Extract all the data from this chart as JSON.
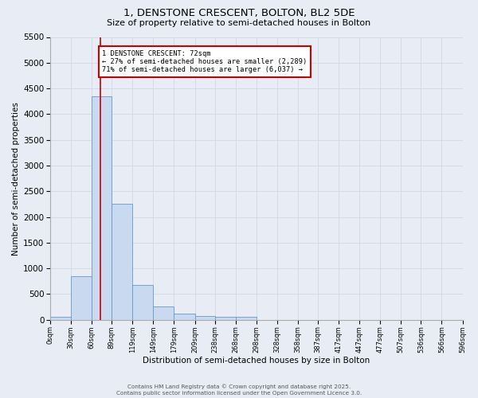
{
  "title_line1": "1, DENSTONE CRESCENT, BOLTON, BL2 5DE",
  "title_line2": "Size of property relative to semi-detached houses in Bolton",
  "xlabel": "Distribution of semi-detached houses by size in Bolton",
  "ylabel": "Number of semi-detached properties",
  "property_size": 72,
  "property_label": "1 DENSTONE CRESCENT: 72sqm",
  "pct_smaller": 27,
  "pct_larger": 71,
  "n_smaller": 2289,
  "n_larger": 6037,
  "bin_edges": [
    0,
    30,
    60,
    89,
    119,
    149,
    179,
    209,
    238,
    268,
    298,
    328,
    358,
    387,
    417,
    447,
    477,
    507,
    536,
    566,
    596
  ],
  "bin_labels": [
    "0sqm",
    "30sqm",
    "60sqm",
    "89sqm",
    "119sqm",
    "149sqm",
    "179sqm",
    "209sqm",
    "238sqm",
    "268sqm",
    "298sqm",
    "328sqm",
    "358sqm",
    "387sqm",
    "417sqm",
    "447sqm",
    "477sqm",
    "507sqm",
    "536sqm",
    "566sqm",
    "596sqm"
  ],
  "counts": [
    50,
    850,
    4350,
    2250,
    680,
    260,
    120,
    70,
    55,
    50,
    0,
    0,
    0,
    0,
    0,
    0,
    0,
    0,
    0,
    0
  ],
  "bar_facecolor": "#c9d9f0",
  "bar_edgecolor": "#6699cc",
  "redline_color": "#cc0000",
  "annotation_box_edgecolor": "#cc0000",
  "annotation_box_facecolor": "#ffffff",
  "grid_color": "#d0d8e8",
  "background_color": "#e8edf5",
  "ylim": [
    0,
    5500
  ],
  "yticks": [
    0,
    500,
    1000,
    1500,
    2000,
    2500,
    3000,
    3500,
    4000,
    4500,
    5000,
    5500
  ],
  "footer_line1": "Contains HM Land Registry data © Crown copyright and database right 2025.",
  "footer_line2": "Contains public sector information licensed under the Open Government Licence 3.0."
}
